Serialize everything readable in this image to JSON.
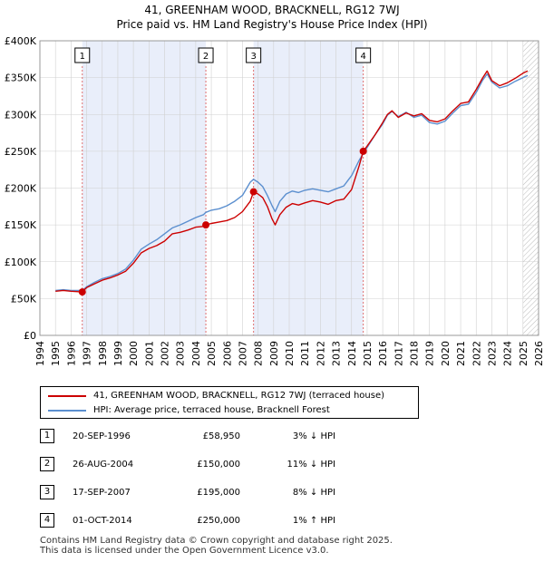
{
  "title": {
    "line1": "41, GREENHAM WOOD, BRACKNELL, RG12 7WJ",
    "line2": "Price paid vs. HM Land Registry's House Price Index (HPI)"
  },
  "colors": {
    "property": "#cc0000",
    "hpi": "#5b8fcf",
    "shade": "#e9eefa",
    "vline": "#e07070",
    "grid": "#d0d0d0"
  },
  "legend": {
    "property_label": "41, GREENHAM WOOD, BRACKNELL, RG12 7WJ (terraced house)",
    "hpi_label": "HPI: Average price, terraced house, Bracknell Forest"
  },
  "transactions": [
    {
      "num": "1",
      "date": "20-SEP-1996",
      "price": "£58,950",
      "hpi": "3% ↓ HPI"
    },
    {
      "num": "2",
      "date": "26-AUG-2004",
      "price": "£150,000",
      "hpi": "11% ↓ HPI"
    },
    {
      "num": "3",
      "date": "17-SEP-2007",
      "price": "£195,000",
      "hpi": "8% ↓ HPI"
    },
    {
      "num": "4",
      "date": "01-OCT-2014",
      "price": "£250,000",
      "hpi": "1% ↑ HPI"
    }
  ],
  "footer": {
    "line1": "Contains HM Land Registry data © Crown copyright and database right 2025.",
    "line2": "This data is licensed under the Open Government Licence v3.0."
  },
  "chart_data": {
    "type": "line",
    "title": "41, GREENHAM WOOD, BRACKNELL, RG12 7WJ — Price paid vs. HM Land Registry's House Price Index (HPI)",
    "xlabel": "",
    "ylabel": "",
    "xlim": [
      1994,
      2026
    ],
    "ylim": [
      0,
      400000
    ],
    "xticks": [
      1994,
      1995,
      1996,
      1997,
      1998,
      1999,
      2000,
      2001,
      2002,
      2003,
      2004,
      2005,
      2006,
      2007,
      2008,
      2009,
      2010,
      2011,
      2012,
      2013,
      2014,
      2015,
      2016,
      2017,
      2018,
      2019,
      2020,
      2021,
      2022,
      2023,
      2024,
      2025,
      2026
    ],
    "yticks": [
      0,
      50000,
      100000,
      150000,
      200000,
      250000,
      300000,
      350000,
      400000
    ],
    "ytick_labels": [
      "£0",
      "£50K",
      "£100K",
      "£150K",
      "£200K",
      "£250K",
      "£300K",
      "£350K",
      "£400K"
    ],
    "grid": true,
    "shaded_ranges": [
      [
        1996.72,
        2004.65
      ],
      [
        2007.71,
        2014.75
      ]
    ],
    "future_hatch_from": 2025.0,
    "sales": [
      {
        "label": "1",
        "x": 1996.72,
        "y": 58950
      },
      {
        "label": "2",
        "x": 2004.65,
        "y": 150000
      },
      {
        "label": "3",
        "x": 2007.71,
        "y": 195000
      },
      {
        "label": "4",
        "x": 2014.75,
        "y": 250000
      }
    ],
    "series": [
      {
        "name": "41, GREENHAM WOOD, BRACKNELL, RG12 7WJ (terraced house)",
        "x": [
          1995.0,
          1995.5,
          1996.0,
          1996.72,
          1997.0,
          1997.5,
          1998.0,
          1998.5,
          1999.0,
          1999.5,
          2000.0,
          2000.5,
          2001.0,
          2001.5,
          2002.0,
          2002.5,
          2003.0,
          2003.5,
          2004.0,
          2004.5,
          2004.65,
          2005.0,
          2005.5,
          2006.0,
          2006.5,
          2007.0,
          2007.5,
          2007.71,
          2008.0,
          2008.3,
          2008.6,
          2008.9,
          2009.1,
          2009.4,
          2009.8,
          2010.2,
          2010.6,
          2011.0,
          2011.5,
          2012.0,
          2012.5,
          2013.0,
          2013.5,
          2014.0,
          2014.5,
          2014.75,
          2015.0,
          2015.5,
          2016.0,
          2016.3,
          2016.6,
          2017.0,
          2017.5,
          2018.0,
          2018.5,
          2019.0,
          2019.5,
          2020.0,
          2020.5,
          2021.0,
          2021.5,
          2022.0,
          2022.4,
          2022.7,
          2023.0,
          2023.5,
          2024.0,
          2024.5,
          2025.0,
          2025.3
        ],
        "values": [
          60000,
          61000,
          60000,
          58950,
          65000,
          70000,
          75000,
          78000,
          82000,
          87000,
          98000,
          112000,
          118000,
          122000,
          128000,
          138000,
          140000,
          143000,
          147000,
          148000,
          150000,
          152000,
          154000,
          156000,
          160000,
          168000,
          182000,
          195000,
          192000,
          187000,
          175000,
          158000,
          150000,
          164000,
          174000,
          179000,
          177000,
          180000,
          183000,
          181000,
          178000,
          183000,
          185000,
          198000,
          231000,
          250000,
          257000,
          272000,
          289000,
          300000,
          305000,
          296000,
          302000,
          298000,
          301000,
          292000,
          290000,
          294000,
          305000,
          315000,
          317000,
          334000,
          349000,
          359000,
          346000,
          339000,
          343000,
          349000,
          356000,
          359000
        ]
      },
      {
        "name": "HPI: Average price, terraced house, Bracknell Forest",
        "x": [
          1995.0,
          1995.5,
          1996.0,
          1996.72,
          1997.0,
          1997.5,
          1998.0,
          1998.5,
          1999.0,
          1999.5,
          2000.0,
          2000.5,
          2001.0,
          2001.5,
          2002.0,
          2002.5,
          2003.0,
          2003.5,
          2004.0,
          2004.5,
          2004.65,
          2005.0,
          2005.5,
          2006.0,
          2006.5,
          2007.0,
          2007.5,
          2007.71,
          2008.0,
          2008.3,
          2008.6,
          2008.9,
          2009.1,
          2009.4,
          2009.8,
          2010.2,
          2010.6,
          2011.0,
          2011.5,
          2012.0,
          2012.5,
          2013.0,
          2013.5,
          2014.0,
          2014.5,
          2014.75,
          2015.0,
          2015.5,
          2016.0,
          2016.3,
          2016.6,
          2017.0,
          2017.5,
          2018.0,
          2018.5,
          2019.0,
          2019.5,
          2020.0,
          2020.5,
          2021.0,
          2021.5,
          2022.0,
          2022.4,
          2022.7,
          2023.0,
          2023.5,
          2024.0,
          2024.5,
          2025.0,
          2025.3
        ],
        "values": [
          61000,
          62000,
          61000,
          61000,
          66000,
          72000,
          77000,
          80000,
          84000,
          90000,
          102000,
          117000,
          124000,
          130000,
          138000,
          146000,
          150000,
          155000,
          160000,
          164000,
          167000,
          170000,
          172000,
          176000,
          182000,
          190000,
          208000,
          212000,
          208000,
          202000,
          190000,
          176000,
          168000,
          182000,
          192000,
          196000,
          194000,
          197000,
          199000,
          197000,
          195000,
          199000,
          203000,
          217000,
          238000,
          247000,
          255000,
          272000,
          287000,
          299000,
          304000,
          297000,
          303000,
          296000,
          299000,
          289000,
          287000,
          291000,
          302000,
          312000,
          314000,
          330000,
          346000,
          355000,
          344000,
          336000,
          339000,
          345000,
          350000,
          353000
        ]
      }
    ]
  }
}
